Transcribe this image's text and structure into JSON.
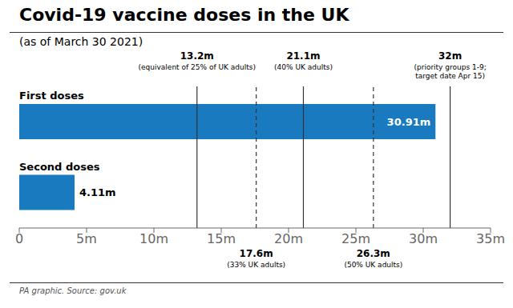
{
  "chart_data": {
    "type": "bar",
    "orientation": "horizontal",
    "title": "Covid-19 vaccine doses in the UK",
    "subtitle": "(as of March 30 2021)",
    "source": "PA graphic. Source: gov.uk",
    "categories": [
      "First doses",
      "Second doses"
    ],
    "values": [
      30.91,
      4.11
    ],
    "value_labels": [
      "30.91m",
      "4.11m"
    ],
    "data_labels": true,
    "color": "#1a7abf",
    "xlim": [
      0,
      35
    ],
    "xticks": [
      0,
      {
        "value": 5,
        "label": "5m"
      },
      {
        "value": 10,
        "label": "10m"
      },
      {
        "value": 15,
        "label": "15m"
      },
      {
        "value": 20,
        "label": "20m"
      },
      {
        "value": 25,
        "label": "25m"
      },
      {
        "value": 30,
        "label": "30m"
      },
      {
        "value": 35,
        "label": "35m"
      }
    ],
    "grid": false,
    "annotations": [
      {
        "x": 13.2,
        "label": "13.2m",
        "text": "(equivalent of 25% of UK adults)",
        "line_style": "solid"
      },
      {
        "x": 21.1,
        "label": "21.1m",
        "text": "(40% UK adults)",
        "line_style": "solid"
      },
      {
        "x": 32.0,
        "label": "32m",
        "text": "(priority groups 1-9;\ntarget date Apr 15)",
        "line_style": "solid"
      },
      {
        "x": 17.6,
        "label": "17.6m",
        "text": "(33% UK adults)",
        "line_style": "dashed"
      },
      {
        "x": 26.3,
        "label": "26.3m",
        "text": "(50% UK adults)",
        "line_style": "dashed"
      }
    ]
  }
}
